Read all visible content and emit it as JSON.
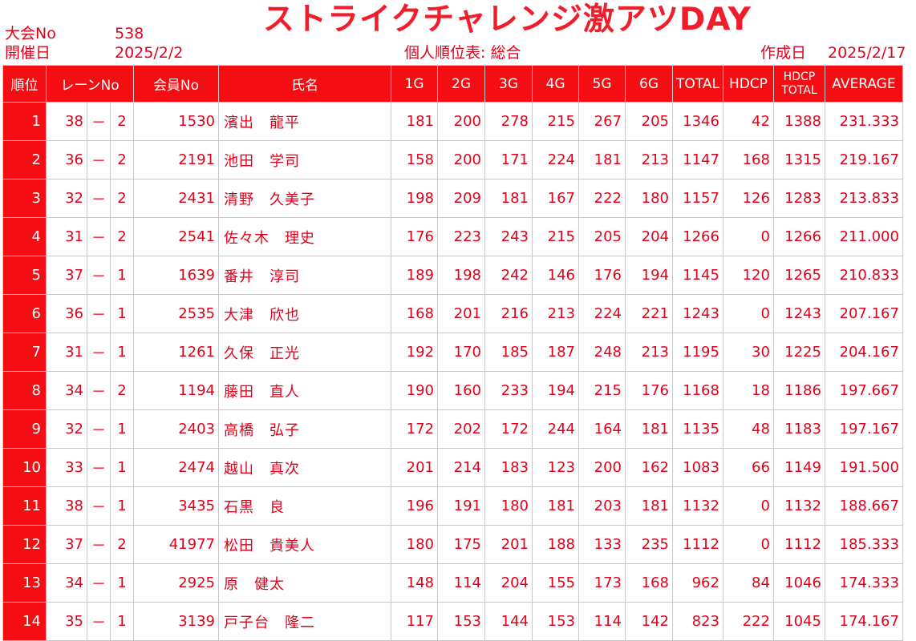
{
  "header": {
    "event_label": "大会No",
    "event_no": "538",
    "date_label": "開催日",
    "date": "2025/2/2",
    "title": "ストライクチャレンジ激アツDAY",
    "report_name": "個人順位表: 総合",
    "created_label": "作成日",
    "created_date": "2025/2/17"
  },
  "columns": {
    "rank": "順位",
    "lane": "レーンNo",
    "member": "会員No",
    "name": "氏名",
    "g1": "1G",
    "g2": "2G",
    "g3": "3G",
    "g4": "4G",
    "g5": "5G",
    "g6": "6G",
    "total": "TOTAL",
    "hdcp": "HDCP",
    "hdcp_total_1": "HDCP",
    "hdcp_total_2": "TOTAL",
    "average": "AVERAGE"
  },
  "rows": [
    {
      "rank": "1",
      "lane": "38",
      "sep": "－",
      "pos": "2",
      "member": "1530",
      "name": "濱出　龍平",
      "g": [
        "181",
        "200",
        "278",
        "215",
        "267",
        "205"
      ],
      "total": "1346",
      "hdcp": "42",
      "hdcp_total": "1388",
      "average": "231.333"
    },
    {
      "rank": "2",
      "lane": "36",
      "sep": "－",
      "pos": "2",
      "member": "2191",
      "name": "池田　学司",
      "g": [
        "158",
        "200",
        "171",
        "224",
        "181",
        "213"
      ],
      "total": "1147",
      "hdcp": "168",
      "hdcp_total": "1315",
      "average": "219.167"
    },
    {
      "rank": "3",
      "lane": "32",
      "sep": "－",
      "pos": "2",
      "member": "2431",
      "name": "清野　久美子",
      "g": [
        "198",
        "209",
        "181",
        "167",
        "222",
        "180"
      ],
      "total": "1157",
      "hdcp": "126",
      "hdcp_total": "1283",
      "average": "213.833"
    },
    {
      "rank": "4",
      "lane": "31",
      "sep": "－",
      "pos": "2",
      "member": "2541",
      "name": "佐々木　理史",
      "g": [
        "176",
        "223",
        "243",
        "215",
        "205",
        "204"
      ],
      "total": "1266",
      "hdcp": "0",
      "hdcp_total": "1266",
      "average": "211.000"
    },
    {
      "rank": "5",
      "lane": "37",
      "sep": "－",
      "pos": "1",
      "member": "1639",
      "name": "番井　淳司",
      "g": [
        "189",
        "198",
        "242",
        "146",
        "176",
        "194"
      ],
      "total": "1145",
      "hdcp": "120",
      "hdcp_total": "1265",
      "average": "210.833"
    },
    {
      "rank": "6",
      "lane": "36",
      "sep": "－",
      "pos": "1",
      "member": "2535",
      "name": "大津　欣也",
      "g": [
        "168",
        "201",
        "216",
        "213",
        "224",
        "221"
      ],
      "total": "1243",
      "hdcp": "0",
      "hdcp_total": "1243",
      "average": "207.167"
    },
    {
      "rank": "7",
      "lane": "31",
      "sep": "－",
      "pos": "1",
      "member": "1261",
      "name": "久保　正光",
      "g": [
        "192",
        "170",
        "185",
        "187",
        "248",
        "213"
      ],
      "total": "1195",
      "hdcp": "30",
      "hdcp_total": "1225",
      "average": "204.167"
    },
    {
      "rank": "8",
      "lane": "34",
      "sep": "－",
      "pos": "2",
      "member": "1194",
      "name": "藤田　直人",
      "g": [
        "190",
        "160",
        "233",
        "194",
        "215",
        "176"
      ],
      "total": "1168",
      "hdcp": "18",
      "hdcp_total": "1186",
      "average": "197.667"
    },
    {
      "rank": "9",
      "lane": "32",
      "sep": "－",
      "pos": "1",
      "member": "2403",
      "name": "高橋　弘子",
      "g": [
        "172",
        "202",
        "172",
        "244",
        "164",
        "181"
      ],
      "total": "1135",
      "hdcp": "48",
      "hdcp_total": "1183",
      "average": "197.167"
    },
    {
      "rank": "10",
      "lane": "33",
      "sep": "－",
      "pos": "1",
      "member": "2474",
      "name": "越山　真次",
      "g": [
        "201",
        "214",
        "183",
        "123",
        "200",
        "162"
      ],
      "total": "1083",
      "hdcp": "66",
      "hdcp_total": "1149",
      "average": "191.500"
    },
    {
      "rank": "11",
      "lane": "38",
      "sep": "－",
      "pos": "1",
      "member": "3435",
      "name": "石黒　良",
      "g": [
        "196",
        "191",
        "180",
        "181",
        "203",
        "181"
      ],
      "total": "1132",
      "hdcp": "0",
      "hdcp_total": "1132",
      "average": "188.667"
    },
    {
      "rank": "12",
      "lane": "37",
      "sep": "－",
      "pos": "2",
      "member": "41977",
      "name": "松田　貴美人",
      "g": [
        "180",
        "175",
        "201",
        "188",
        "133",
        "235"
      ],
      "total": "1112",
      "hdcp": "0",
      "hdcp_total": "1112",
      "average": "185.333"
    },
    {
      "rank": "13",
      "lane": "34",
      "sep": "－",
      "pos": "1",
      "member": "2925",
      "name": "原　健太",
      "g": [
        "148",
        "114",
        "204",
        "155",
        "173",
        "168"
      ],
      "total": "962",
      "hdcp": "84",
      "hdcp_total": "1046",
      "average": "174.333"
    },
    {
      "rank": "14",
      "lane": "35",
      "sep": "－",
      "pos": "1",
      "member": "3139",
      "name": "戸子台　隆二",
      "g": [
        "117",
        "153",
        "144",
        "153",
        "114",
        "142"
      ],
      "total": "823",
      "hdcp": "222",
      "hdcp_total": "1045",
      "average": "174.167"
    }
  ]
}
